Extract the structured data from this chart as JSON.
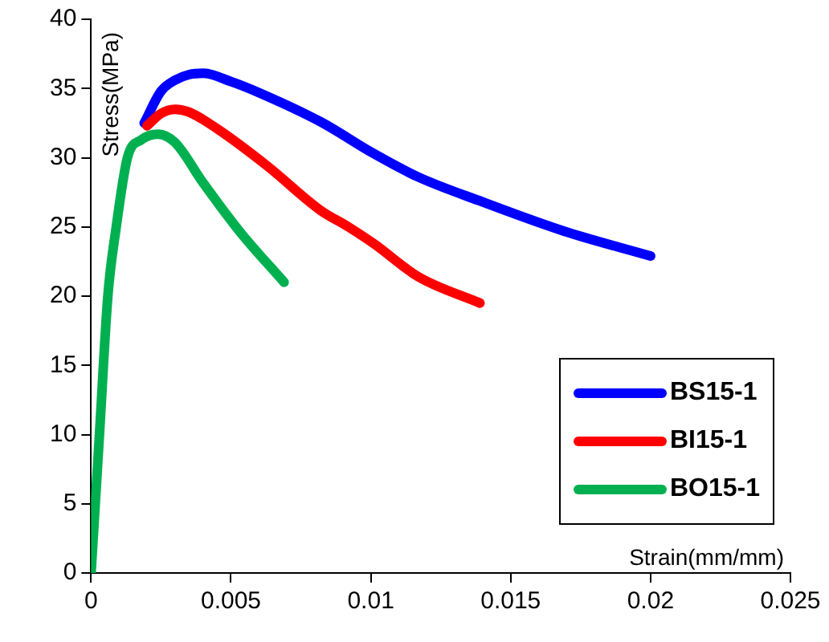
{
  "chart_data": {
    "type": "line",
    "xlabel": "Strain(mm/mm)",
    "ylabel": "Stress(MPa)",
    "xlim": [
      0,
      0.025
    ],
    "xticks": [
      0,
      0.005,
      0.01,
      0.015,
      0.02,
      0.025
    ],
    "ylim": [
      0,
      40
    ],
    "yticks": [
      0,
      5,
      10,
      15,
      20,
      25,
      30,
      35,
      40
    ],
    "grid": false,
    "legend": "bottom right",
    "marker": "none",
    "line_style": "solid",
    "series": [
      {
        "name": "BS15-1",
        "color": "#0000ff",
        "x": [
          0.0019,
          0.0025,
          0.003,
          0.0035,
          0.004,
          0.005,
          0.006,
          0.0082,
          0.0101,
          0.0117,
          0.014,
          0.0169,
          0.02
        ],
        "values": [
          32.5,
          34.8,
          35.6,
          36,
          36.1,
          35.5,
          34.7,
          32.6,
          30.3,
          28.6,
          26.8,
          24.7,
          22.9
        ]
      },
      {
        "name": "BI15-1",
        "color": "#ff0000",
        "x": [
          0.002,
          0.0025,
          0.003,
          0.0035,
          0.0045,
          0.0063,
          0.0082,
          0.0092,
          0.0101,
          0.0117,
          0.0139
        ],
        "values": [
          32.3,
          33.2,
          33.5,
          33.3,
          32.1,
          29.4,
          26.2,
          25,
          23.8,
          21.4,
          19.5
        ]
      },
      {
        "name": "BO15-1",
        "color": "#00b050",
        "x": [
          0,
          0.0003,
          0.0006,
          0.0009,
          0.0013,
          0.0018,
          0.0024,
          0.003,
          0.004,
          0.0053,
          0.0069
        ],
        "values": [
          0,
          10,
          20,
          25,
          30,
          31.3,
          31.7,
          31.1,
          28.2,
          24.7,
          21
        ]
      }
    ]
  }
}
